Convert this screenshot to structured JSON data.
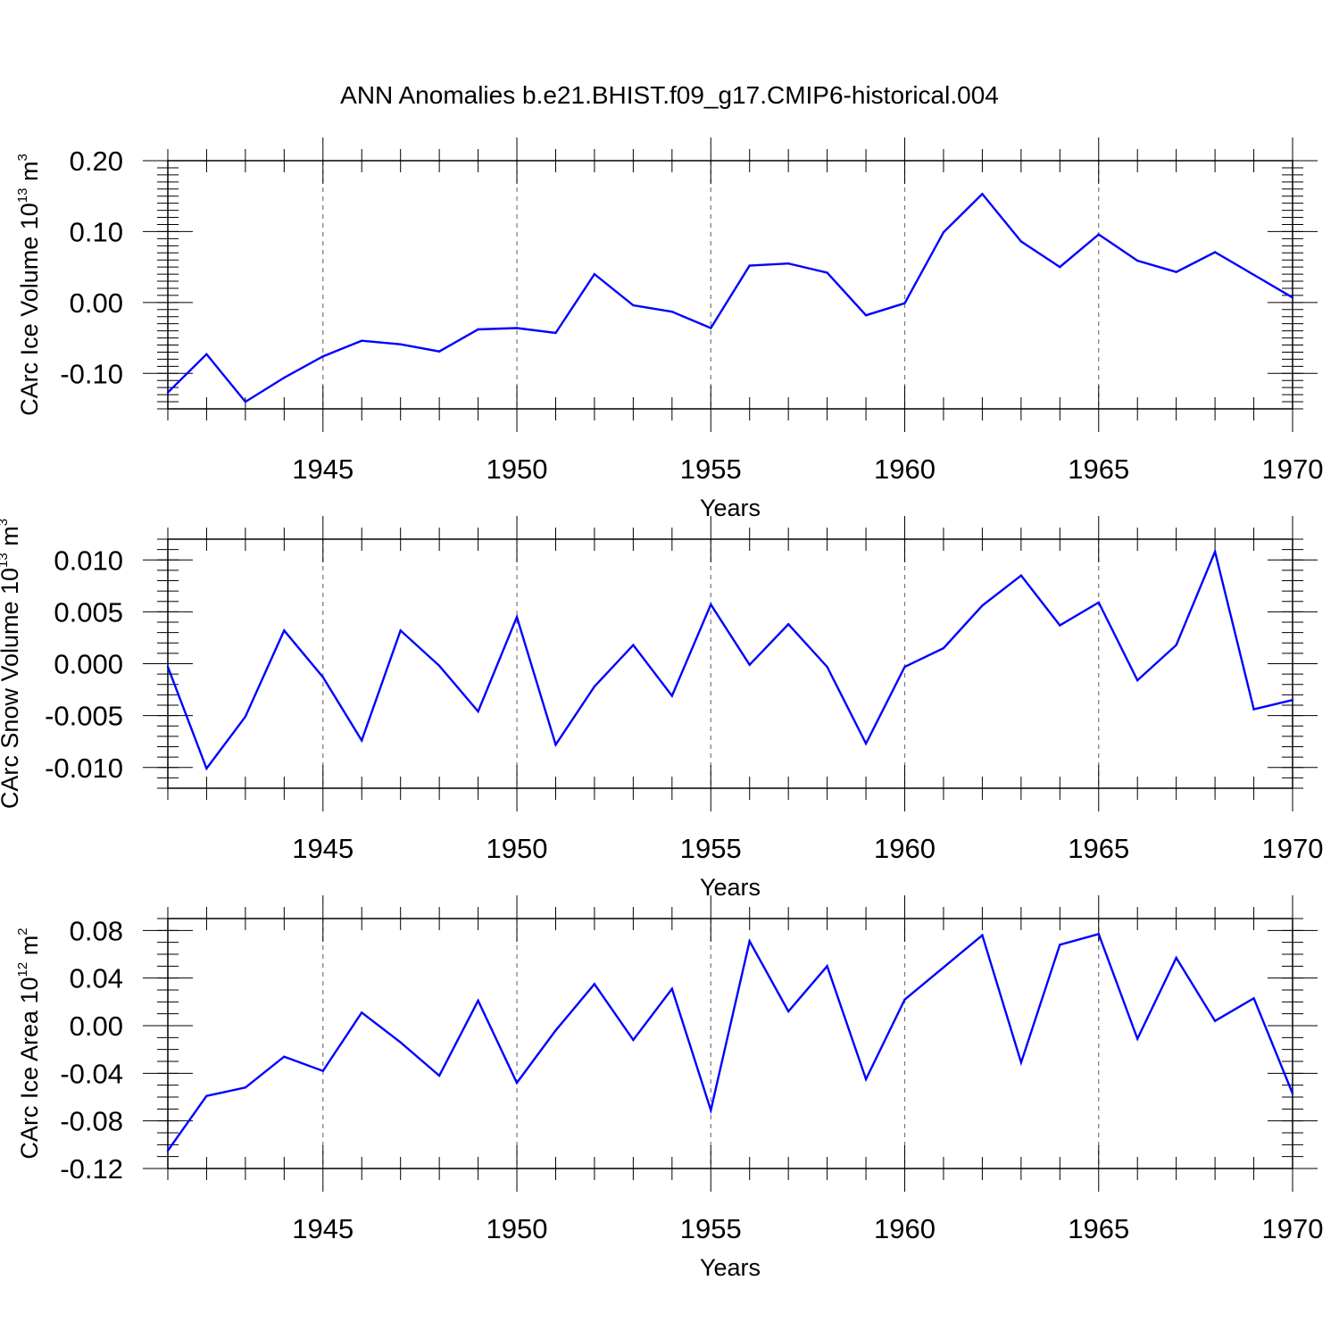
{
  "title": "ANN Anomalies b.e21.BHIST.f09_g17.CMIP6-historical.004",
  "colors": {
    "line": "#0000ff",
    "axis": "#000000",
    "grid": "#777777"
  },
  "chart_data": [
    {
      "type": "line",
      "title": "ANN Anomalies b.e21.BHIST.f09_g17.CMIP6-historical.004",
      "xlabel": "Years",
      "ylabel": {
        "base": "CArc Ice Volume 10",
        "exp": "13",
        "unit": " m",
        "unit_exp": "3"
      },
      "xlim": [
        1941,
        1970
      ],
      "ylim": [
        -0.15,
        0.2
      ],
      "yticks": [
        -0.1,
        0.0,
        0.1,
        0.2
      ],
      "ytick_labels": [
        "-0.10",
        "0.00",
        "0.10",
        "0.20"
      ],
      "xticks": [
        1945,
        1950,
        1955,
        1960,
        1965,
        1970
      ],
      "xtick_labels": [
        "1945",
        "1950",
        "1955",
        "1960",
        "1965",
        "1970"
      ],
      "grid_x": [
        1945,
        1950,
        1955,
        1960,
        1965
      ],
      "x": [
        1941,
        1942,
        1943,
        1944,
        1945,
        1946,
        1947,
        1948,
        1949,
        1950,
        1951,
        1952,
        1953,
        1954,
        1955,
        1956,
        1957,
        1958,
        1959,
        1960,
        1961,
        1962,
        1963,
        1964,
        1965,
        1966,
        1967,
        1968,
        1969,
        1970
      ],
      "values": [
        -0.127,
        -0.073,
        -0.14,
        -0.106,
        -0.076,
        -0.054,
        -0.059,
        -0.069,
        -0.038,
        -0.036,
        -0.043,
        0.04,
        -0.004,
        -0.013,
        -0.036,
        0.052,
        0.055,
        0.042,
        -0.018,
        -0.001,
        0.099,
        0.153,
        0.086,
        0.05,
        0.096,
        0.059,
        0.043,
        0.071,
        0.039,
        0.007
      ]
    },
    {
      "type": "line",
      "xlabel": "Years",
      "ylabel": {
        "base": "CArc Snow Volume 10",
        "exp": "13",
        "unit": " m",
        "unit_exp": "3"
      },
      "xlim": [
        1941,
        1970
      ],
      "ylim": [
        -0.012,
        0.012
      ],
      "yticks": [
        -0.01,
        -0.005,
        0.0,
        0.005,
        0.01
      ],
      "ytick_labels": [
        "-0.010",
        "-0.005",
        "0.000",
        "0.005",
        "0.010"
      ],
      "xticks": [
        1945,
        1950,
        1955,
        1960,
        1965,
        1970
      ],
      "xtick_labels": [
        "1945",
        "1950",
        "1955",
        "1960",
        "1965",
        "1970"
      ],
      "grid_x": [
        1945,
        1950,
        1955,
        1960,
        1965
      ],
      "x": [
        1941,
        1942,
        1943,
        1944,
        1945,
        1946,
        1947,
        1948,
        1949,
        1950,
        1951,
        1952,
        1953,
        1954,
        1955,
        1956,
        1957,
        1958,
        1959,
        1960,
        1961,
        1962,
        1963,
        1964,
        1965,
        1966,
        1967,
        1968,
        1969,
        1970
      ],
      "values": [
        -0.0003,
        -0.0101,
        -0.0051,
        0.0032,
        -0.0013,
        -0.0074,
        0.0032,
        -0.0002,
        -0.0046,
        0.0045,
        -0.0078,
        -0.0022,
        0.0018,
        -0.0031,
        0.0057,
        -0.0001,
        0.0038,
        -0.0003,
        -0.0077,
        -0.0003,
        0.0015,
        0.0056,
        0.0085,
        0.0037,
        0.0059,
        -0.0016,
        0.0018,
        0.0108,
        -0.0044,
        -0.0035
      ]
    },
    {
      "type": "line",
      "xlabel": "Years",
      "ylabel": {
        "base": "CArc Ice Area 10",
        "exp": "12",
        "unit": " m",
        "unit_exp": "2"
      },
      "xlim": [
        1941,
        1970
      ],
      "ylim": [
        -0.12,
        0.09
      ],
      "yticks": [
        -0.12,
        -0.08,
        -0.04,
        0.0,
        0.04,
        0.08
      ],
      "ytick_labels": [
        "-0.12",
        "-0.08",
        "-0.04",
        "0.00",
        "0.04",
        "0.08"
      ],
      "xticks": [
        1945,
        1950,
        1955,
        1960,
        1965,
        1970
      ],
      "xtick_labels": [
        "1945",
        "1950",
        "1955",
        "1960",
        "1965",
        "1970"
      ],
      "grid_x": [
        1945,
        1950,
        1955,
        1960,
        1965
      ],
      "x": [
        1941,
        1942,
        1943,
        1944,
        1945,
        1946,
        1947,
        1948,
        1949,
        1950,
        1951,
        1952,
        1953,
        1954,
        1955,
        1956,
        1957,
        1958,
        1959,
        1960,
        1961,
        1962,
        1963,
        1964,
        1965,
        1966,
        1967,
        1968,
        1969,
        1970
      ],
      "values": [
        -0.105,
        -0.059,
        -0.052,
        -0.026,
        -0.038,
        0.011,
        -0.014,
        -0.042,
        0.021,
        -0.048,
        -0.004,
        0.035,
        -0.012,
        0.031,
        -0.071,
        0.071,
        0.012,
        0.05,
        -0.045,
        0.022,
        0.049,
        0.076,
        -0.031,
        0.068,
        0.077,
        -0.011,
        0.057,
        0.004,
        0.023,
        -0.057
      ]
    }
  ]
}
